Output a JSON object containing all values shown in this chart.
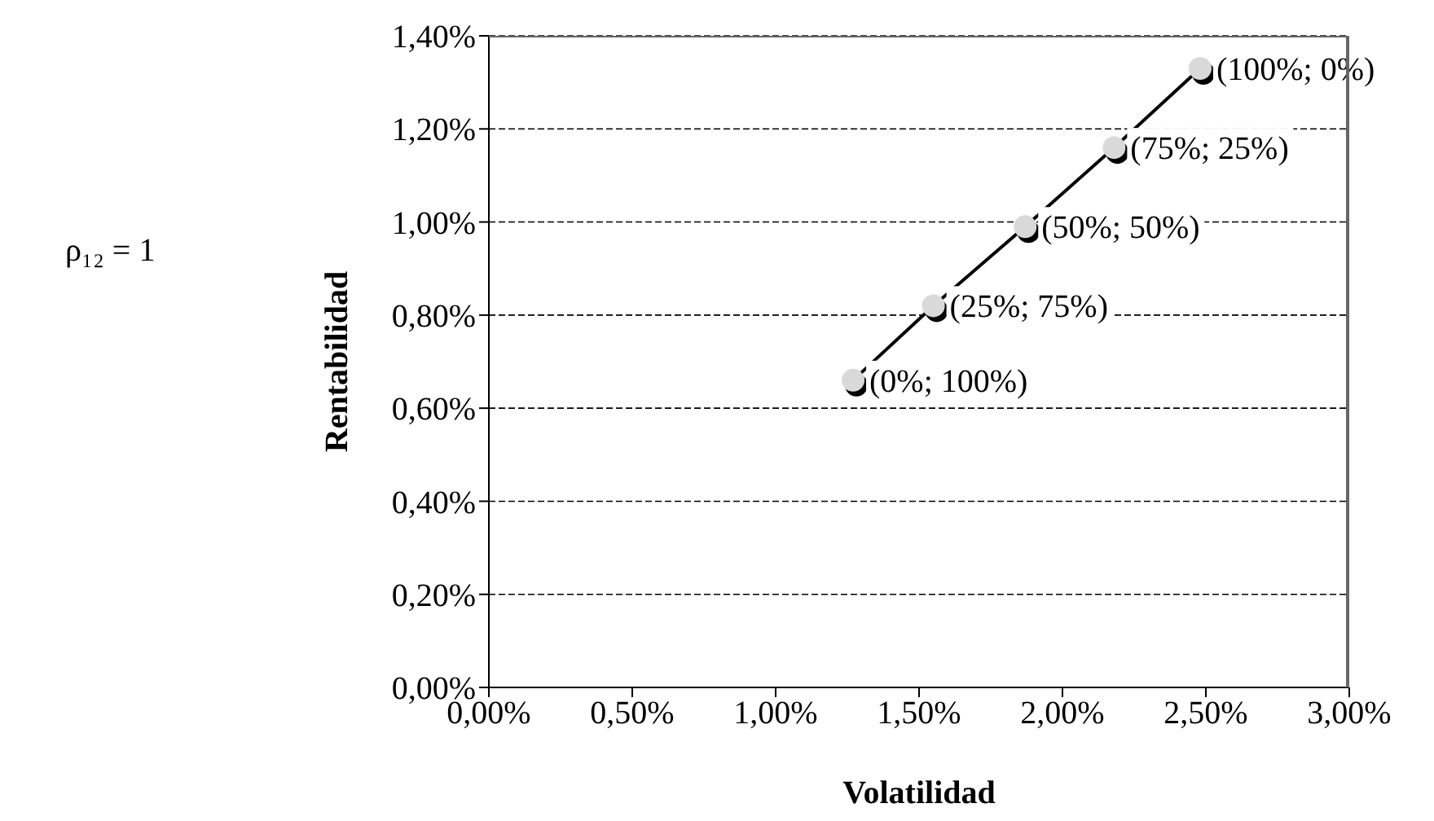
{
  "chart_data": {
    "type": "line",
    "xlabel": "Volatilidad",
    "ylabel": "Rentabilidad",
    "annotations": [
      "ρ₁₂ = 1",
      {
        "text": "(0%; 100%)",
        "x": 1.27,
        "y": 0.66
      },
      {
        "text": "(25%; 75%)",
        "x": 1.55,
        "y": 0.82
      },
      {
        "text": "(50%; 50%)",
        "x": 1.87,
        "y": 0.99
      },
      {
        "text": "(75%; 25%)",
        "x": 2.18,
        "y": 1.16
      },
      {
        "text": "(100%; 0%)",
        "x": 2.48,
        "y": 1.33
      }
    ],
    "x": [
      1.27,
      1.55,
      1.87,
      2.18,
      2.48
    ],
    "series": [
      {
        "color": "#000000",
        "values": [
          0.66,
          0.82,
          0.99,
          1.16,
          1.33
        ]
      }
    ],
    "xlim": [
      0,
      3
    ],
    "xticks": [
      {
        "value": 0,
        "label": "0,00%"
      },
      {
        "value": 0.5,
        "label": "0,50%"
      },
      {
        "value": 1,
        "label": "1,00%"
      },
      {
        "value": 1.5,
        "label": "1,50%"
      },
      {
        "value": 2,
        "label": "2,00%"
      },
      {
        "value": 2.5,
        "label": "2,50%"
      },
      {
        "value": 3,
        "label": "3,00%"
      }
    ],
    "ylim": [
      0,
      1.4
    ],
    "yticks": [
      {
        "value": 0,
        "label": "0,00%"
      },
      {
        "value": 0.2,
        "label": "0,20%"
      },
      {
        "value": 0.4,
        "label": "0,40%"
      },
      {
        "value": 0.6,
        "label": "0,60%"
      },
      {
        "value": 0.8,
        "label": "0,80%"
      },
      {
        "value": 1,
        "label": "1,00%"
      },
      {
        "value": 1.2,
        "label": "1,20%"
      },
      {
        "value": 1.4,
        "label": "1,40%"
      }
    ],
    "grid": "y",
    "marker": "circle",
    "line_style": "solid"
  }
}
